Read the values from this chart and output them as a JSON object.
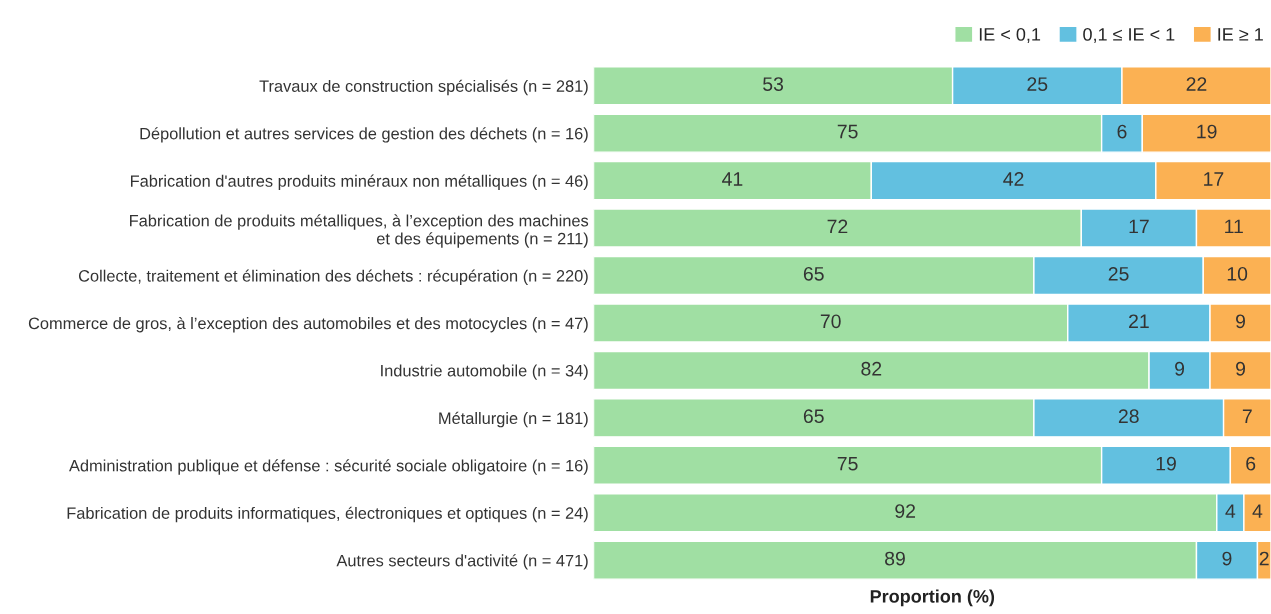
{
  "chart_data": {
    "type": "bar",
    "orientation": "horizontal",
    "stacked": true,
    "xlabel": "Proportion (%)",
    "categories": [
      "Travaux de construction spécialisés (n = 281)",
      "Dépollution et autres services de gestion des déchets (n = 16)",
      "Fabrication d'autres produits minéraux non métalliques (n = 46)",
      "Fabrication de produits métalliques, à l’exception des machines\net des équipements (n = 211)",
      "Collecte, traitement et élimination des déchets : récupération (n = 220)",
      "Commerce de gros, à l’exception des automobiles et des motocycles (n = 47)",
      "Industrie automobile (n = 34)",
      "Métallurgie (n = 181)",
      "Administration publique et défense : sécurité sociale obligatoire (n = 16)",
      "Fabrication de produits informatiques, électroniques et optiques (n = 24)",
      "Autres secteurs d'activité (n = 471)"
    ],
    "series": [
      {
        "name": "IE < 0,1",
        "color": "#a0dfa3",
        "values": [
          53,
          75,
          41,
          72,
          65,
          70,
          82,
          65,
          75,
          92,
          89
        ]
      },
      {
        "name": "0,1 ≤ IE < 1",
        "color": "#62c0e0",
        "values": [
          25,
          6,
          42,
          17,
          25,
          21,
          9,
          28,
          19,
          4,
          9
        ]
      },
      {
        "name": "IE ≥ 1",
        "color": "#fbb153",
        "values": [
          22,
          19,
          17,
          11,
          10,
          9,
          9,
          7,
          6,
          4,
          2
        ]
      }
    ],
    "xlim": [
      0,
      100
    ],
    "data_labels": true,
    "legend": "top right",
    "grid": false,
    "tick_labels": "y"
  }
}
